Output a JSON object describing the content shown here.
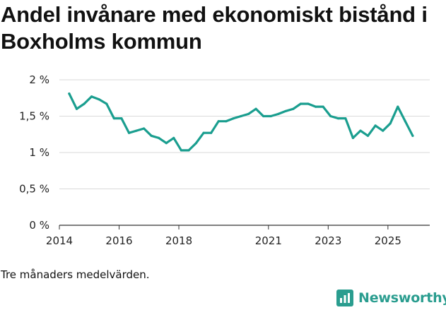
{
  "title": "Andel invånare med ekonomiskt bistånd i Boxholms kommun",
  "caption": "Tre månaders medelvärden.",
  "brand": {
    "name": "Newsworthy",
    "icon": "bar-chart-icon"
  },
  "colors": {
    "line": "#1a9e8f",
    "grid": "#d9d9d9",
    "brand": "#2a9d8f"
  },
  "chart_data": {
    "type": "line",
    "title": "Andel invånare med ekonomiskt bistånd i Boxholms kommun",
    "xlabel": "",
    "ylabel": "",
    "xlim": [
      2014,
      2026.4
    ],
    "ylim": [
      0,
      2
    ],
    "y_ticks": [
      {
        "value": 0,
        "label": "0 %"
      },
      {
        "value": 0.5,
        "label": "0,5 %"
      },
      {
        "value": 1,
        "label": "1 %"
      },
      {
        "value": 1.5,
        "label": "1,5 %"
      },
      {
        "value": 2,
        "label": "2 %"
      }
    ],
    "x_ticks": [
      {
        "value": 2014,
        "label": "2014"
      },
      {
        "value": 2016,
        "label": "2016"
      },
      {
        "value": 2018,
        "label": "2018"
      },
      {
        "value": 2021,
        "label": "2021"
      },
      {
        "value": 2023,
        "label": "2023"
      },
      {
        "value": 2025,
        "label": "2025"
      }
    ],
    "series": [
      {
        "name": "Andel invånare med ekonomiskt bistånd",
        "x": [
          2014.33,
          2014.58,
          2014.83,
          2015.08,
          2015.33,
          2015.58,
          2015.83,
          2016.08,
          2016.33,
          2016.58,
          2016.83,
          2017.08,
          2017.33,
          2017.58,
          2017.83,
          2018.08,
          2018.33,
          2018.58,
          2018.83,
          2019.08,
          2019.33,
          2019.58,
          2019.83,
          2020.08,
          2020.33,
          2020.58,
          2020.83,
          2021.08,
          2021.33,
          2021.58,
          2021.83,
          2022.08,
          2022.33,
          2022.58,
          2022.83,
          2023.08,
          2023.33,
          2023.58,
          2023.83,
          2024.08,
          2024.33,
          2024.58,
          2024.83,
          2025.08,
          2025.33,
          2025.58,
          2025.83
        ],
        "values": [
          1.81,
          1.6,
          1.67,
          1.77,
          1.73,
          1.67,
          1.47,
          1.47,
          1.27,
          1.3,
          1.33,
          1.23,
          1.2,
          1.13,
          1.2,
          1.03,
          1.03,
          1.13,
          1.27,
          1.27,
          1.43,
          1.43,
          1.47,
          1.5,
          1.53,
          1.6,
          1.5,
          1.5,
          1.53,
          1.57,
          1.6,
          1.67,
          1.67,
          1.63,
          1.63,
          1.5,
          1.47,
          1.47,
          1.2,
          1.3,
          1.23,
          1.37,
          1.3,
          1.4,
          1.63,
          1.43,
          1.23
        ]
      }
    ]
  }
}
